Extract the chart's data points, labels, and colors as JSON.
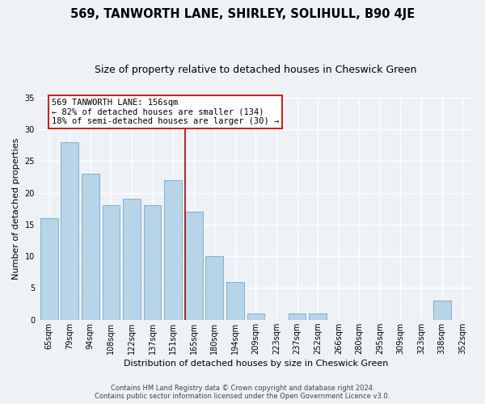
{
  "title": "569, TANWORTH LANE, SHIRLEY, SOLIHULL, B90 4JE",
  "subtitle": "Size of property relative to detached houses in Cheswick Green",
  "xlabel": "Distribution of detached houses by size in Cheswick Green",
  "ylabel": "Number of detached properties",
  "bar_labels": [
    "65sqm",
    "79sqm",
    "94sqm",
    "108sqm",
    "122sqm",
    "137sqm",
    "151sqm",
    "165sqm",
    "180sqm",
    "194sqm",
    "209sqm",
    "223sqm",
    "237sqm",
    "252sqm",
    "266sqm",
    "280sqm",
    "295sqm",
    "309sqm",
    "323sqm",
    "338sqm",
    "352sqm"
  ],
  "bar_values": [
    16,
    28,
    23,
    18,
    19,
    18,
    22,
    17,
    10,
    6,
    1,
    0,
    1,
    1,
    0,
    0,
    0,
    0,
    0,
    3,
    0
  ],
  "bar_color": "#b8d4e8",
  "bar_edge_color": "#8ab4cc",
  "vline_color": "#aa0000",
  "annotation_title": "569 TANWORTH LANE: 156sqm",
  "annotation_line1": "← 82% of detached houses are smaller (134)",
  "annotation_line2": "18% of semi-detached houses are larger (30) →",
  "annotation_box_color": "#ffffff",
  "annotation_box_edge": "#cc2222",
  "ylim": [
    0,
    35
  ],
  "yticks": [
    0,
    5,
    10,
    15,
    20,
    25,
    30,
    35
  ],
  "footer_line1": "Contains HM Land Registry data © Crown copyright and database right 2024.",
  "footer_line2": "Contains public sector information licensed under the Open Government Licence v3.0.",
  "background_color": "#eef2f7",
  "grid_color": "#ffffff",
  "title_fontsize": 10.5,
  "subtitle_fontsize": 9,
  "axis_label_fontsize": 8,
  "tick_fontsize": 7,
  "annot_fontsize": 7.5,
  "footer_fontsize": 6
}
